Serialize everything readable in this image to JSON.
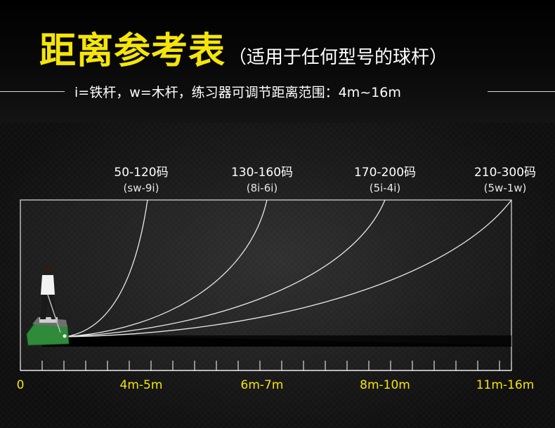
{
  "header": {
    "title": "距离参考表",
    "subtitle": "（适用于任何型号的球杆）",
    "legend": "i=铁杆，w=木杆，练习器可调节距离范围：4m~16m"
  },
  "zones": [
    {
      "range": "50-120码",
      "clubs": "(sw-9i)",
      "distance": "4m-5m"
    },
    {
      "range": "130-160码",
      "clubs": "(8i-6i)",
      "distance": "6m-7m"
    },
    {
      "range": "170-200码",
      "clubs": "(5i-4i)",
      "distance": "8m-10m"
    },
    {
      "range": "210-300码",
      "clubs": "(5w-1w)",
      "distance": "11m-16m"
    }
  ],
  "origin_label": "0",
  "colors": {
    "accent": "#f5e50a",
    "net": "#ffffff",
    "mat": "#2f8a3a"
  }
}
